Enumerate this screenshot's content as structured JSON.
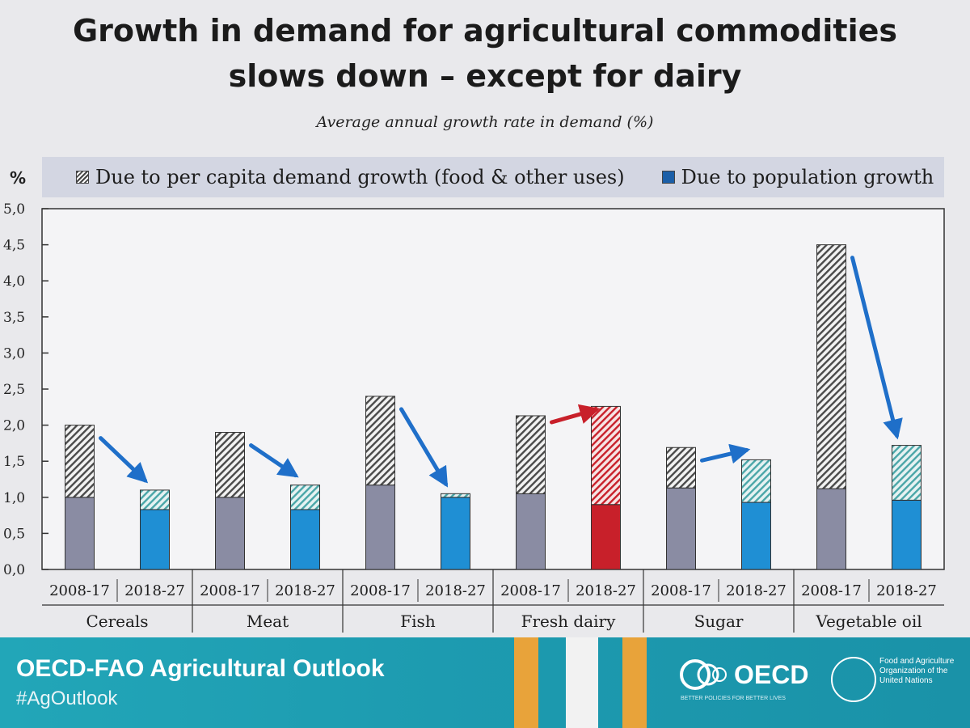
{
  "title_line1": "Growth in demand for agricultural commodities",
  "title_line2": "slows down – except for dairy",
  "subtitle": "Average annual growth rate in demand (%)",
  "y_unit": "%",
  "legend": {
    "hatched": "Due to per capita demand growth (food & other uses)",
    "solid": "Due to population growth"
  },
  "footer": {
    "title": "OECD-FAO Agricultural Outlook",
    "hashtag": "#AgOutlook",
    "oecd": "OECD",
    "oecd_sub": "BETTER POLICIES FOR BETTER LIVES",
    "fao": [
      "Food and Agriculture",
      "Organization of the",
      "United Nations"
    ]
  },
  "colors": {
    "past_solid": "#8a8ca3",
    "future_solid": "#1f8fd4",
    "dairy_future_solid": "#c8202a",
    "dairy_future_hatch": "#c8202a",
    "future_hatch": "#4aa6a8",
    "arrow_blue": "#1f6fc9",
    "arrow_red": "#c8202a",
    "footer": "#1fa0b4"
  },
  "chart_data": {
    "type": "bar",
    "stacked": true,
    "groups": [
      "Cereals",
      "Meat",
      "Fish",
      "Fresh dairy",
      "Sugar",
      "Vegetable oil"
    ],
    "periods": [
      "2008-17",
      "2018-27"
    ],
    "y_ticks": [
      "0,0",
      "0,5",
      "1,0",
      "1,5",
      "2,0",
      "2,5",
      "3,0",
      "3,5",
      "4,0",
      "4,5",
      "5,0"
    ],
    "ylim": [
      0,
      5
    ],
    "series": [
      {
        "name": "Due to population growth",
        "values": [
          1.0,
          0.83,
          1.0,
          0.83,
          1.17,
          1.0,
          1.05,
          0.9,
          1.13,
          0.93,
          1.12,
          0.96
        ]
      },
      {
        "name": "Due to per capita demand growth (food & other uses)",
        "values": [
          1.0,
          0.27,
          0.9,
          0.34,
          1.23,
          0.05,
          1.08,
          1.36,
          0.56,
          0.59,
          3.38,
          0.76
        ]
      }
    ],
    "grid": false,
    "legend_position": "top"
  }
}
